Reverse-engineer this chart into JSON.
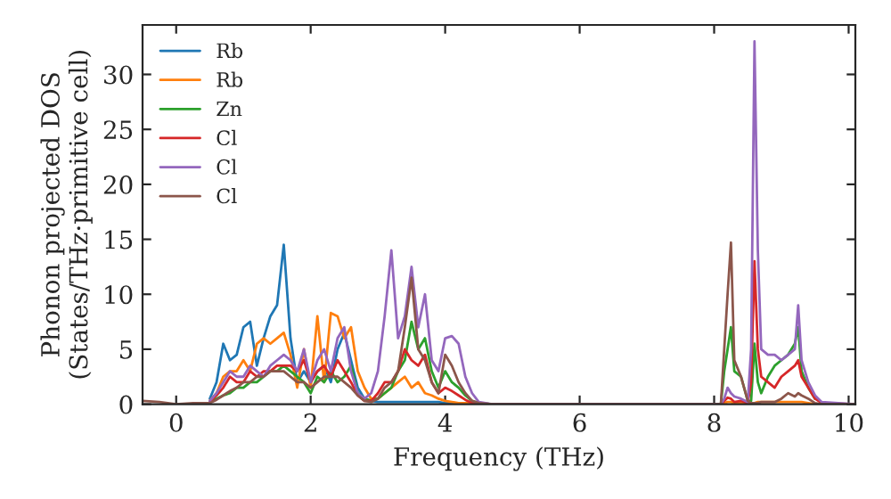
{
  "chart_data": {
    "type": "line",
    "xlabel": "Frequency (THz)",
    "ylabel": "Phonon projected DOS\n(States/THz·primitive cell)",
    "x": [
      -0.5,
      -0.25,
      0,
      0.25,
      0.5,
      0.6,
      0.7,
      0.8,
      0.9,
      1.0,
      1.1,
      1.2,
      1.3,
      1.4,
      1.5,
      1.6,
      1.7,
      1.8,
      1.9,
      2.0,
      2.1,
      2.2,
      2.3,
      2.4,
      2.5,
      2.6,
      2.7,
      2.8,
      2.9,
      3.0,
      3.1,
      3.2,
      3.3,
      3.4,
      3.5,
      3.6,
      3.7,
      3.8,
      3.9,
      4.0,
      4.1,
      4.2,
      4.3,
      4.4,
      4.5,
      4.7,
      5,
      6,
      7,
      8,
      8.1,
      8.15,
      8.2,
      8.25,
      8.3,
      8.4,
      8.5,
      8.55,
      8.6,
      8.65,
      8.7,
      8.8,
      8.9,
      9.0,
      9.1,
      9.2,
      9.25,
      9.3,
      9.4,
      9.5,
      9.6,
      10.1
    ],
    "series": [
      {
        "name": "Rb",
        "color": "#1f77b4",
        "values": [
          null,
          null,
          null,
          null,
          0.5,
          2,
          5.5,
          4,
          4.5,
          7,
          7.5,
          3.5,
          6,
          8,
          9,
          14.5,
          6,
          2,
          3,
          2,
          3,
          3.5,
          2,
          5,
          6.5,
          4,
          1.5,
          0.5,
          0.3,
          0.2,
          0.2,
          0.2,
          0.2,
          0.2,
          0.2,
          0.2,
          0.2,
          0.2,
          0.2,
          0.1,
          0.1,
          0.1,
          null,
          null,
          null,
          null,
          null,
          null,
          null,
          null,
          null,
          null,
          null,
          null,
          null,
          null,
          null,
          null,
          null,
          null,
          null,
          null,
          null,
          null,
          null,
          null,
          null,
          null,
          null,
          null,
          null,
          null
        ]
      },
      {
        "name": "Rb",
        "color": "#ff7f0e",
        "values": [
          null,
          null,
          null,
          null,
          0.3,
          1,
          2.5,
          3,
          3,
          4,
          3,
          5.5,
          6,
          5.5,
          6,
          6.5,
          4.5,
          1.5,
          5,
          1.5,
          8,
          2,
          8.3,
          8,
          6,
          7,
          3,
          1.5,
          0.5,
          0.5,
          1,
          1.5,
          2,
          2.5,
          1.5,
          2,
          1,
          0.8,
          0.5,
          0.3,
          0.2,
          0.1,
          0.1,
          0.1,
          0.1,
          0,
          0,
          0,
          0,
          0,
          0,
          0.1,
          0.2,
          0.2,
          0.1,
          0.1,
          0,
          0,
          0.1,
          0.2,
          0.2,
          0.2,
          0.2,
          0.2,
          0.2,
          0.2,
          0.2,
          0.2,
          0.1,
          0,
          0,
          0
        ]
      },
      {
        "name": "Zn",
        "color": "#2ca02c",
        "values": [
          null,
          null,
          null,
          null,
          0.2,
          0.5,
          0.8,
          1,
          1.5,
          1.5,
          2,
          2,
          2.5,
          3,
          3,
          3.5,
          3,
          2.5,
          2,
          1,
          2.5,
          2,
          3,
          2,
          2.5,
          3.5,
          1,
          0.5,
          0.3,
          0.5,
          1,
          1.5,
          3,
          4,
          7.5,
          5,
          6,
          3,
          1.5,
          3,
          2,
          1.5,
          0.8,
          0.3,
          0.1,
          0,
          0,
          0,
          0,
          0,
          0,
          3,
          5,
          7,
          3,
          2.5,
          0.3,
          0.3,
          5.5,
          2,
          1,
          2.5,
          3.5,
          4,
          4.5,
          5.5,
          7,
          3,
          1.5,
          0.5,
          null,
          null
        ]
      },
      {
        "name": "Cl",
        "color": "#d62728",
        "values": [
          null,
          null,
          null,
          null,
          0.2,
          0.8,
          1.5,
          2.5,
          2,
          2,
          3,
          2.5,
          3,
          3,
          3.5,
          3.5,
          3.5,
          3,
          4,
          2,
          3,
          3.5,
          2.5,
          4,
          3,
          2,
          0.8,
          0.3,
          0.3,
          1,
          2,
          2,
          3,
          5,
          4,
          3.5,
          4.5,
          2,
          1,
          1.5,
          1.2,
          0.8,
          0.4,
          0.1,
          0,
          0,
          0,
          0,
          0,
          0,
          0,
          0.3,
          0.6,
          0.5,
          0.2,
          0.3,
          0.1,
          2,
          13,
          5,
          2.5,
          2,
          1.5,
          2.5,
          3,
          3.5,
          4,
          2.5,
          1.5,
          0.5,
          0.1,
          0
        ]
      },
      {
        "name": "Cl",
        "color": "#9467bd",
        "values": [
          null,
          null,
          null,
          null,
          0.3,
          1,
          2,
          3,
          2.5,
          2.5,
          3.5,
          3,
          2.5,
          3.5,
          4,
          4.5,
          4,
          3,
          5,
          2,
          4,
          5,
          3,
          6,
          7,
          3,
          1,
          0.5,
          1,
          3,
          8,
          14,
          6,
          8,
          12.5,
          7,
          10,
          4,
          3,
          6,
          6.2,
          5.5,
          2.5,
          1,
          0.2,
          0,
          0,
          0,
          0,
          0,
          0,
          0.5,
          1.5,
          1,
          0.7,
          0.5,
          0.2,
          5,
          33,
          14,
          5,
          4.5,
          4.5,
          4,
          4.5,
          5,
          9,
          4,
          2,
          0.8,
          0.2,
          0
        ]
      },
      {
        "name": "Cl",
        "color": "#8c564b",
        "values": [
          0.3,
          0.2,
          0,
          0.1,
          0.1,
          0.4,
          0.8,
          1.2,
          1.5,
          2,
          2,
          2.5,
          2.5,
          3,
          3,
          3,
          2.5,
          2,
          2,
          1.5,
          2,
          2.5,
          2.5,
          2.5,
          2,
          1.5,
          0.8,
          0.3,
          0.2,
          0.5,
          1.5,
          2,
          3,
          7,
          11.5,
          5,
          4,
          2,
          1,
          4.5,
          3.5,
          2,
          1,
          0.3,
          0.1,
          0,
          0,
          0,
          0,
          0,
          0,
          5,
          10,
          14.7,
          4,
          2.5,
          0.3,
          0.1,
          0.1,
          0.1,
          0.2,
          0.2,
          0.2,
          0.5,
          1,
          0.7,
          1,
          0.8,
          0.5,
          0.1,
          0,
          0
        ]
      }
    ],
    "xlim": [
      -0.5,
      10.1
    ],
    "ylim": [
      0,
      34.5
    ],
    "xticks": [
      0,
      2,
      4,
      6,
      8,
      10
    ],
    "yticks": [
      0,
      5,
      10,
      15,
      20,
      25,
      30
    ],
    "legend": "top left",
    "grid": false,
    "marker": "none",
    "line_style": "solid"
  }
}
